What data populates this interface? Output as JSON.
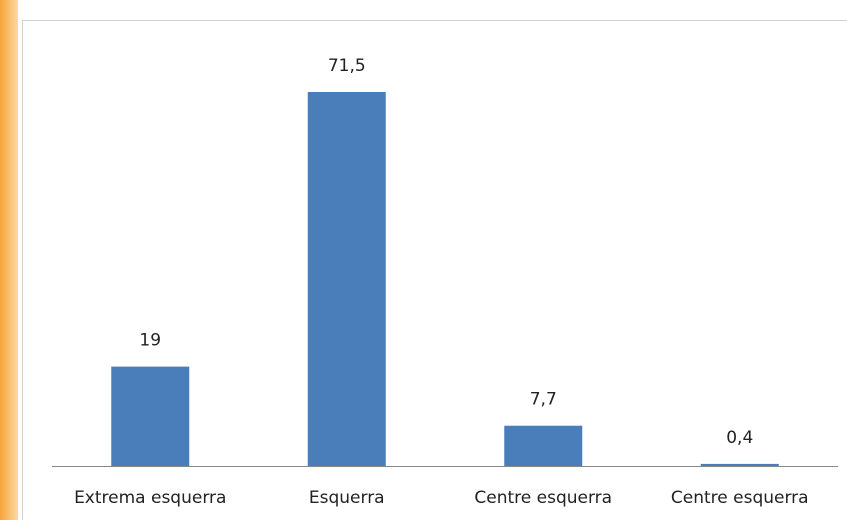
{
  "chart_data": {
    "type": "bar",
    "categories": [
      "Extrema esquerra",
      "Esquerra",
      "Centre esquerra",
      "Centre esquerra"
    ],
    "values": [
      19,
      71.5,
      7.7,
      0.4
    ],
    "value_labels": [
      "19",
      "71,5",
      "7,7",
      "0,4"
    ],
    "color": "#4a7ebb"
  }
}
